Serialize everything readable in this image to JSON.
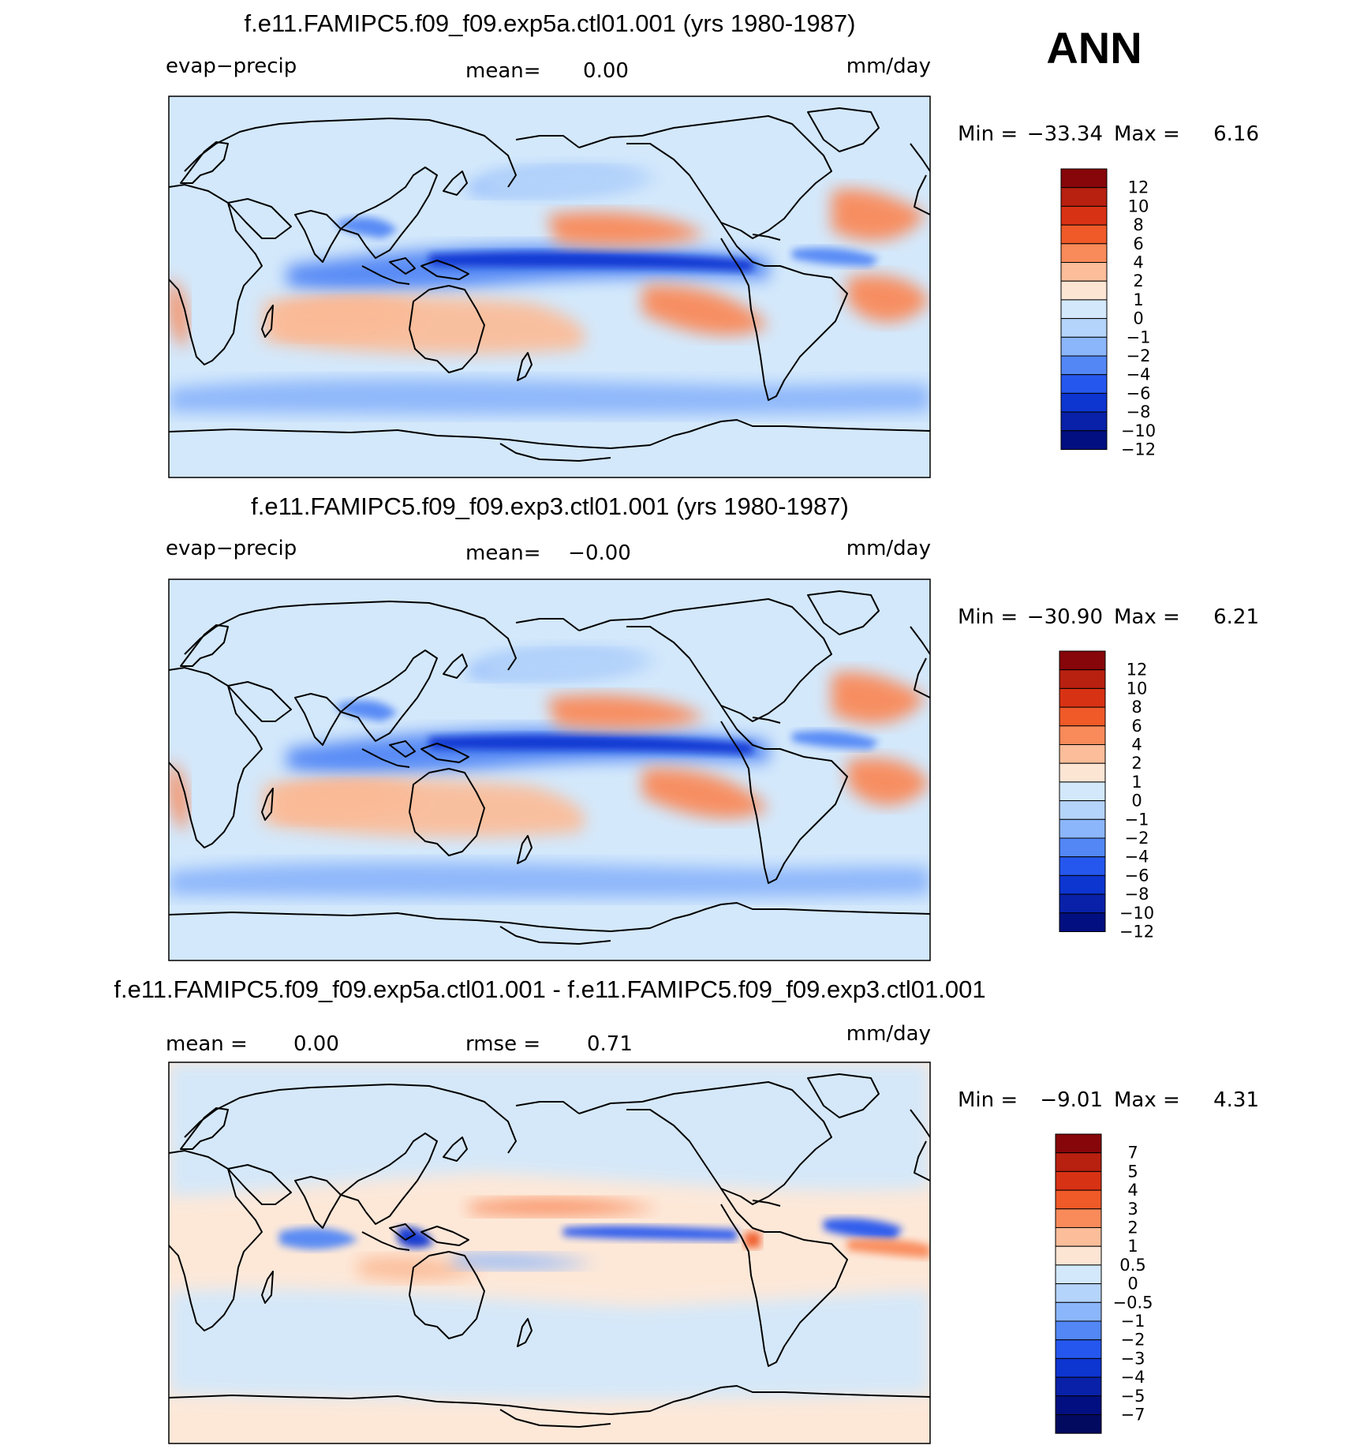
{
  "season": "ANN",
  "panels": [
    {
      "title": "f.e11.FAMIPC5.f09_f09.exp5a.ctl01.001 (yrs 1980-1987)",
      "left_label": "evap−precip",
      "center_label": "mean=",
      "center_value": "0.00",
      "units": "mm/day",
      "min_label": "Min  =",
      "min_value": "−33.34",
      "max_label": "Max  =",
      "max_value": "6.16",
      "background": "#d3e8fb",
      "colorbar": {
        "colors": [
          "#86060a",
          "#b82010",
          "#d83214",
          "#ef5a28",
          "#f98a5a",
          "#fbbd9a",
          "#fde5d4",
          "#d3e8fb",
          "#b5d4fb",
          "#8cb6fb",
          "#5287f5",
          "#2557ee",
          "#0d35d0",
          "#0821a8",
          "#020f80"
        ],
        "labels": [
          "12",
          "10",
          "8",
          "6",
          "4",
          "2",
          "1",
          "0",
          "−1",
          "−2",
          "−4",
          "−6",
          "−8",
          "−10",
          "−12"
        ]
      }
    },
    {
      "title": "f.e11.FAMIPC5.f09_f09.exp3.ctl01.001 (yrs 1980-1987)",
      "left_label": "evap−precip",
      "center_label": "mean=",
      "center_value": "−0.00",
      "units": "mm/day",
      "min_label": "Min  =",
      "min_value": "−30.90",
      "max_label": "Max  =",
      "max_value": "6.21",
      "background": "#d3e8fb",
      "colorbar": {
        "colors": [
          "#86060a",
          "#b82010",
          "#d83214",
          "#ef5a28",
          "#f98a5a",
          "#fbbd9a",
          "#fde5d4",
          "#d3e8fb",
          "#b5d4fb",
          "#8cb6fb",
          "#5287f5",
          "#2557ee",
          "#0d35d0",
          "#0821a8",
          "#020f80"
        ],
        "labels": [
          "12",
          "10",
          "8",
          "6",
          "4",
          "2",
          "1",
          "0",
          "−1",
          "−2",
          "−4",
          "−6",
          "−8",
          "−10",
          "−12"
        ]
      }
    },
    {
      "title": "f.e11.FAMIPC5.f09_f09.exp5a.ctl01.001 - f.e11.FAMIPC5.f09_f09.exp3.ctl01.001",
      "left_label": "mean  =",
      "left_value": "0.00",
      "center_label": "rmse  =",
      "center_value": "0.71",
      "units": "mm/day",
      "min_label": "Min  =",
      "min_value": "−9.01",
      "max_label": "Max  =",
      "max_value": "4.31",
      "background": "#fde8d8",
      "colorbar": {
        "colors": [
          "#86060a",
          "#b82010",
          "#d83214",
          "#ef5a28",
          "#f98a5a",
          "#fbbd9a",
          "#fde5d4",
          "#d3e8fb",
          "#b5d4fb",
          "#8cb6fb",
          "#5287f5",
          "#2557ee",
          "#0d35d0",
          "#0821a8",
          "#020f80",
          "#020a60"
        ],
        "labels": [
          "7",
          "5",
          "4",
          "3",
          "2",
          "1",
          "0.5",
          "0",
          "−0.5",
          "−1",
          "−2",
          "−3",
          "−4",
          "−5",
          "−7"
        ]
      }
    }
  ]
}
